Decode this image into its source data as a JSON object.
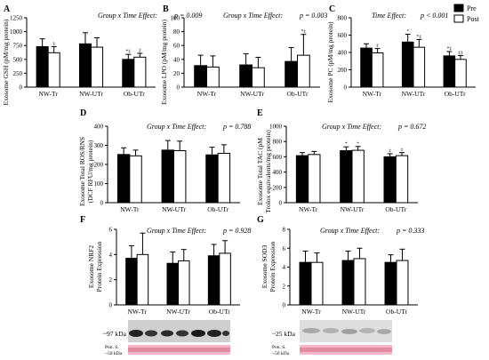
{
  "legend": {
    "items": [
      {
        "label": "Pre",
        "color": "#000000"
      },
      {
        "label": "Post",
        "color": "#ffffff"
      }
    ]
  },
  "chart_data": [
    {
      "id": "A",
      "type": "bar",
      "effect": {
        "label": "Group x Time Effect",
        "p": "p = 0.009"
      },
      "ylabel": [
        "Exosome GSH (pM/mg protein)"
      ],
      "ylim": [
        0,
        1250
      ],
      "yticks": [
        0,
        250,
        500,
        750,
        1000,
        1250
      ],
      "categories": [
        "NW-Tr",
        "NW-UTr",
        "Ob-UTr"
      ],
      "series": [
        {
          "name": "Pre",
          "values": [
            730,
            780,
            500
          ],
          "errors": [
            140,
            200,
            90
          ]
        },
        {
          "name": "Post",
          "values": [
            620,
            720,
            540
          ],
          "errors": [
            110,
            170,
            70
          ]
        }
      ],
      "annotations": [
        [
          "",
          "‡"
        ],
        [
          "",
          ""
        ],
        [
          "*‡",
          "‡"
        ]
      ]
    },
    {
      "id": "B",
      "type": "bar",
      "effect": {
        "label": "Group x Time Effect",
        "p": "p = 0.003"
      },
      "ylabel": [
        "Exosome LPO (pM/mg protein)"
      ],
      "ylim": [
        0,
        100
      ],
      "yticks": [
        0,
        20,
        40,
        60,
        80,
        100
      ],
      "categories": [
        "NW-Tr",
        "NW-UTr",
        "Ob-UTr"
      ],
      "series": [
        {
          "name": "Pre",
          "values": [
            31,
            32,
            37
          ],
          "errors": [
            15,
            16,
            20
          ]
        },
        {
          "name": "Post",
          "values": [
            29,
            28,
            46
          ],
          "errors": [
            16,
            15,
            30
          ]
        }
      ],
      "annotations": [
        [
          "",
          ""
        ],
        [
          "",
          ""
        ],
        [
          "",
          "*‡"
        ]
      ]
    },
    {
      "id": "C",
      "type": "bar",
      "effect": {
        "label": "Time Effect",
        "p": "p < 0.001"
      },
      "ylabel": [
        "Exosome PC (pM/mg protein)"
      ],
      "ylim": [
        0,
        800
      ],
      "yticks": [
        0,
        200,
        400,
        600,
        800
      ],
      "categories": [
        "NW-Tr",
        "NW-UTr",
        "Ob-UTr"
      ],
      "series": [
        {
          "name": "Pre",
          "values": [
            450,
            520,
            360
          ],
          "errors": [
            50,
            90,
            50
          ]
        },
        {
          "name": "Post",
          "values": [
            395,
            460,
            320
          ],
          "errors": [
            50,
            90,
            45
          ]
        }
      ],
      "annotations": [
        [
          "",
          "‡"
        ],
        [
          "*",
          "*‡"
        ],
        [
          "*‡",
          "‡‡"
        ]
      ]
    },
    {
      "id": "D",
      "type": "bar",
      "effect": {
        "label": "Group x Time Effect",
        "p": "p = 0.788"
      },
      "ylabel": [
        "Exosome Total ROS/RNS",
        "(DCF RFU/mg protein)"
      ],
      "ylim": [
        0,
        400
      ],
      "yticks": [
        0,
        100,
        200,
        300,
        400
      ],
      "categories": [
        "NW-Tr",
        "NW-UTr",
        "Ob-UTr"
      ],
      "series": [
        {
          "name": "Pre",
          "values": [
            252,
            275,
            250
          ],
          "errors": [
            35,
            50,
            40
          ]
        },
        {
          "name": "Post",
          "values": [
            245,
            272,
            258
          ],
          "errors": [
            30,
            50,
            45
          ]
        }
      ],
      "annotations": [
        [
          "",
          ""
        ],
        [
          "",
          ""
        ],
        [
          "",
          ""
        ]
      ]
    },
    {
      "id": "E",
      "type": "bar",
      "effect": {
        "label": "Group x Time Effect",
        "p": "p = 0.672"
      },
      "ylabel": [
        "Exosome Total TAC (pM",
        "Trolox equivalents/mg protein)"
      ],
      "ylim": [
        0,
        1000
      ],
      "yticks": [
        0,
        200,
        400,
        600,
        800,
        1000
      ],
      "categories": [
        "NW-Tr",
        "NW-UTr",
        "Ob-UTr"
      ],
      "series": [
        {
          "name": "Pre",
          "values": [
            615,
            680,
            600
          ],
          "errors": [
            40,
            50,
            40
          ]
        },
        {
          "name": "Post",
          "values": [
            630,
            685,
            615
          ],
          "errors": [
            40,
            50,
            40
          ]
        }
      ],
      "annotations": [
        [
          "",
          ""
        ],
        [
          "*",
          "*"
        ],
        [
          "‡",
          "‡"
        ]
      ]
    },
    {
      "id": "F",
      "type": "bar",
      "effect": {
        "label": "Group x Time Effect",
        "p": "p = 0.928"
      },
      "ylabel": [
        "Exosome NRF2",
        "Protein Expression"
      ],
      "ylim": [
        0,
        6
      ],
      "yticks": [
        0,
        2,
        4,
        6
      ],
      "categories": [
        "NW-Tr",
        "NW-UTr",
        "Ob-UTr"
      ],
      "series": [
        {
          "name": "Pre",
          "values": [
            3.7,
            3.3,
            3.9
          ],
          "errors": [
            1.0,
            0.9,
            0.9
          ]
        },
        {
          "name": "Post",
          "values": [
            4.0,
            3.5,
            4.1
          ],
          "errors": [
            1.7,
            0.9,
            1.0
          ]
        }
      ],
      "annotations": [
        [
          "",
          ""
        ],
        [
          "",
          ""
        ],
        [
          "",
          ""
        ]
      ]
    },
    {
      "id": "G",
      "type": "bar",
      "effect": {
        "label": "Group x Time Effect",
        "p": "p = 0.333"
      },
      "ylabel": [
        "Exosome SOD3",
        "Protein Expression"
      ],
      "ylim": [
        0,
        8
      ],
      "yticks": [
        0,
        2,
        4,
        6,
        8
      ],
      "categories": [
        "NW-Tr",
        "NW-UTr",
        "Ob-UTr"
      ],
      "series": [
        {
          "name": "Pre",
          "values": [
            4.5,
            4.7,
            4.5
          ],
          "errors": [
            1.2,
            1.0,
            0.8
          ]
        },
        {
          "name": "Post",
          "values": [
            4.5,
            4.9,
            4.7
          ],
          "errors": [
            1.0,
            1.1,
            1.2
          ]
        }
      ],
      "annotations": [
        [
          "",
          ""
        ],
        [
          "",
          ""
        ],
        [
          "",
          ""
        ]
      ]
    }
  ],
  "blots": {
    "F": {
      "band_label": "~97 kDa",
      "pon_label": [
        "Pon. S.",
        "~50 kDa"
      ]
    },
    "G": {
      "band_label": "~25 kDa",
      "pon_label": [
        "Pon. S.",
        "~50 kDa"
      ]
    }
  }
}
